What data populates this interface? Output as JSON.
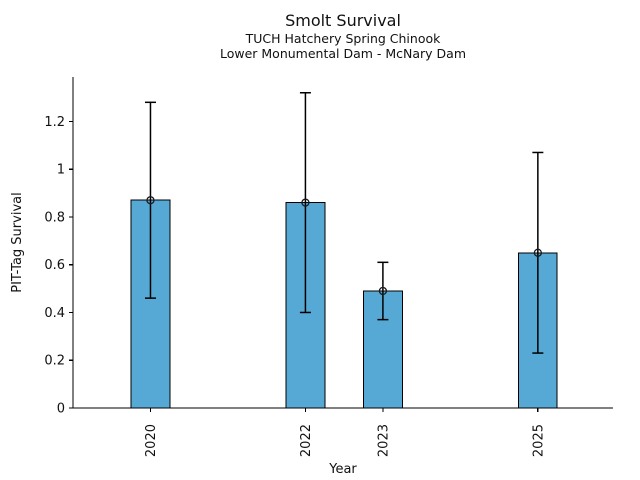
{
  "figure": {
    "title": "Smolt Survival",
    "subtitle1": "TUCH Hatchery Spring Chinook",
    "subtitle2": "Lower Monumental Dam - McNary Dam"
  },
  "chart_data": {
    "type": "bar",
    "title": "Smolt Survival",
    "subtitle": [
      "TUCH Hatchery Spring Chinook",
      "Lower Monumental Dam - McNary Dam"
    ],
    "xlabel": "Year",
    "ylabel": "PIT-Tag Survival",
    "categories": [
      2020,
      2022,
      2023,
      2025
    ],
    "values": [
      0.87,
      0.86,
      0.49,
      0.65
    ],
    "error_bars": {
      "lower": [
        0.46,
        0.4,
        0.37,
        0.23
      ],
      "upper": [
        1.28,
        1.32,
        0.61,
        1.07
      ]
    },
    "bar_width_years": 0.5,
    "xlim": [
      2019.0,
      2025.97
    ],
    "ylim": [
      0,
      1.386
    ],
    "ytick_values": [
      0,
      0.2,
      0.4,
      0.6,
      0.8,
      1,
      1.2
    ],
    "ytick_labels": [
      "0",
      "0.2",
      "0.4",
      "0.6",
      "0.8",
      "1",
      "1.2"
    ],
    "xtick_labels": [
      "2020",
      "2022",
      "2023",
      "2025"
    ],
    "bar_color": "#57a9d5",
    "bar_edge_color": "#000000",
    "error_color": "#000000",
    "marker": "open-circle",
    "marker_color": "#1a1a1a",
    "grid": false,
    "legend_position": "none"
  }
}
